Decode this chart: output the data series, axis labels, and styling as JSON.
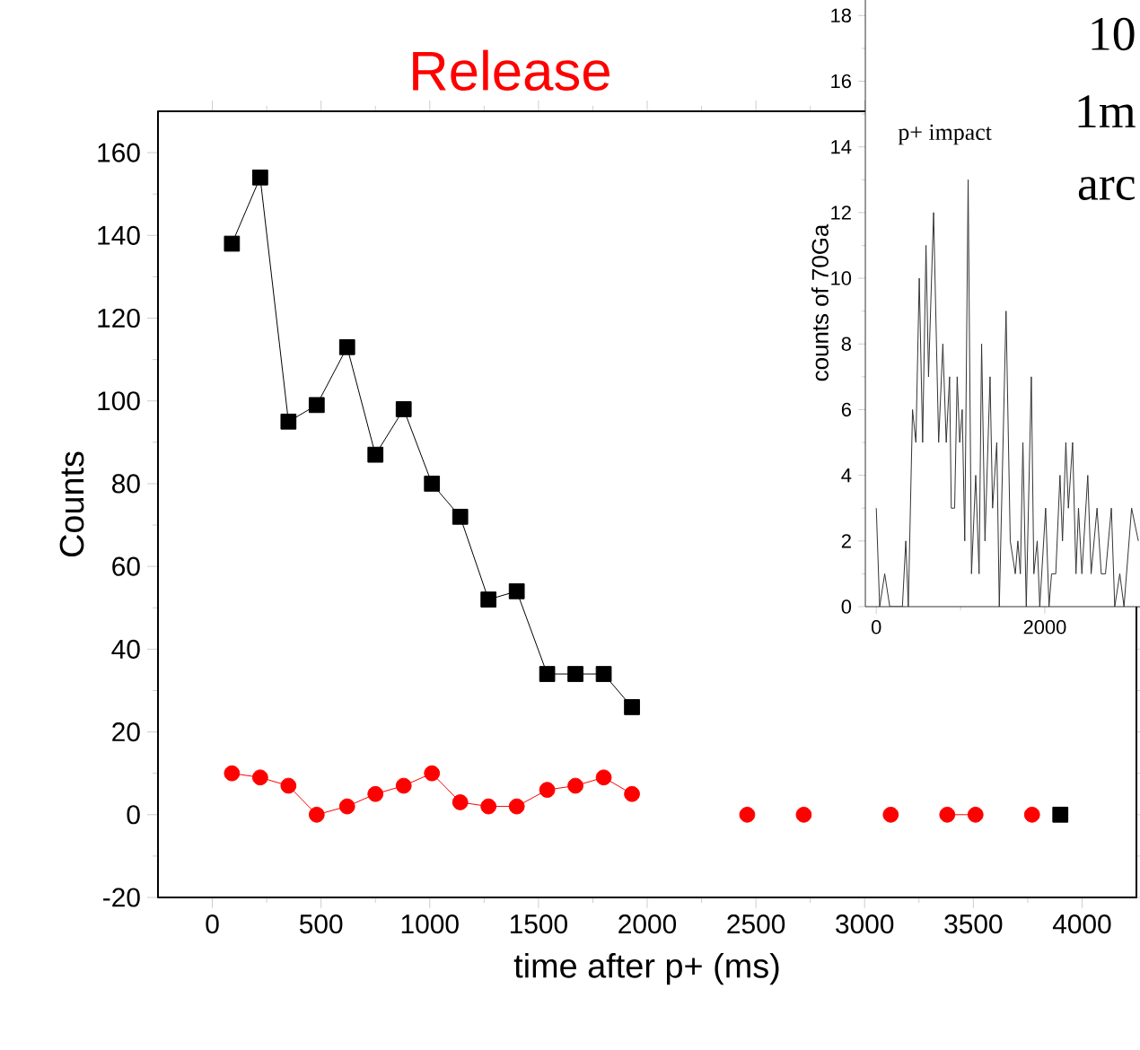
{
  "chart_data": [
    {
      "type": "line",
      "title": "Release",
      "xlabel": "time after p+ (ms)",
      "ylabel": "Counts",
      "x": [
        90,
        220,
        350,
        480,
        620,
        750,
        880,
        1010,
        1140,
        1270,
        1400,
        1540,
        1670,
        1800,
        1930,
        2060,
        2190,
        2330,
        2460,
        2590,
        2720,
        2850,
        2980,
        3120,
        3250,
        3380,
        3510,
        3640,
        3770,
        3900
      ],
      "xlim": [
        -250,
        4250
      ],
      "ylim": [
        -20,
        170
      ],
      "xticks": [
        0,
        500,
        1000,
        1500,
        2000,
        2500,
        3000,
        3500,
        4000
      ],
      "yticks": [
        -20,
        0,
        20,
        40,
        60,
        80,
        100,
        120,
        140,
        160
      ],
      "series": [
        {
          "color": "#000000",
          "marker": "square",
          "values": [
            138,
            154,
            95,
            99,
            113,
            87,
            98,
            80,
            72,
            52,
            54,
            34,
            34,
            34,
            26,
            null,
            null,
            null,
            null,
            null,
            null,
            null,
            null,
            null,
            null,
            null,
            null,
            null,
            null,
            0
          ]
        },
        {
          "color": "#ff0000",
          "marker": "circle",
          "values": [
            10,
            9,
            7,
            0,
            2,
            5,
            7,
            10,
            3,
            2,
            2,
            6,
            7,
            9,
            5,
            null,
            null,
            null,
            0,
            null,
            0,
            null,
            null,
            0,
            null,
            0,
            0,
            null,
            0,
            null
          ]
        }
      ]
    },
    {
      "type": "line",
      "ylabel": "counts of 70Ga",
      "annotations": [
        "p+ impact",
        "10",
        "1m",
        "arc"
      ],
      "x": [
        0,
        40,
        100,
        160,
        310,
        350,
        380,
        430,
        470,
        510,
        550,
        590,
        620,
        680,
        740,
        790,
        830,
        870,
        890,
        930,
        960,
        990,
        1020,
        1050,
        1090,
        1130,
        1180,
        1220,
        1250,
        1290,
        1350,
        1380,
        1430,
        1460,
        1540,
        1590,
        1650,
        1680,
        1710,
        1740,
        1780,
        1840,
        1870,
        1910,
        1940,
        2010,
        2050,
        2080,
        2130,
        2180,
        2210,
        2250,
        2280,
        2330,
        2370,
        2400,
        2440,
        2510,
        2550,
        2620,
        2670,
        2720,
        2790,
        2830,
        2890,
        2940,
        3030,
        3110
      ],
      "values": [
        3,
        0,
        1,
        0,
        0,
        2,
        0,
        6,
        5,
        10,
        5,
        11,
        7,
        12,
        5,
        8,
        5,
        7,
        3,
        3,
        7,
        5,
        6,
        2,
        13,
        1,
        4,
        1,
        8,
        2,
        7,
        3,
        5,
        0,
        9,
        2,
        1,
        2,
        1,
        5,
        0,
        7,
        1,
        2,
        0,
        3,
        0,
        1,
        1,
        4,
        2,
        5,
        3,
        5,
        1,
        3,
        1,
        4,
        1,
        3,
        1,
        1,
        3,
        0,
        1,
        0,
        3,
        2
      ],
      "color": "#333333",
      "xlim": [
        -130,
        3130
      ],
      "ylim": [
        0,
        18.5
      ],
      "xticks": [
        0,
        2000
      ],
      "yticks": [
        0,
        2,
        4,
        6,
        8,
        10,
        12,
        14,
        16,
        18
      ]
    }
  ]
}
